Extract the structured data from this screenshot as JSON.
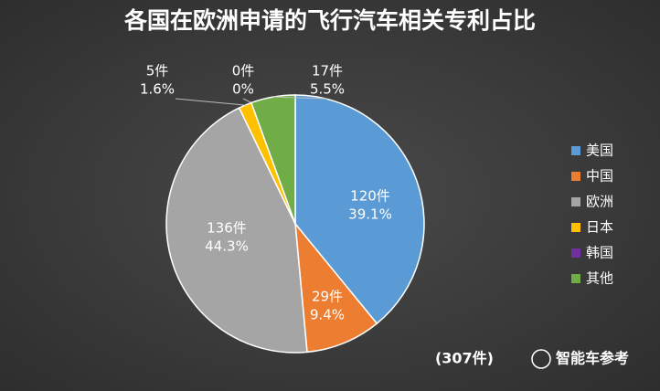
{
  "chart_data": {
    "type": "pie",
    "title": "各国在欧洲申请的飞行汽车相关专利占比",
    "categories": [
      "美国",
      "中国",
      "欧洲",
      "日本",
      "韩国",
      "其他"
    ],
    "values": [
      120,
      29,
      136,
      5,
      0,
      17
    ],
    "value_labels": [
      "120件",
      "29件",
      "136件",
      "5件",
      "0件",
      "17件"
    ],
    "percentages": [
      39.1,
      9.4,
      44.3,
      1.6,
      0,
      5.5
    ],
    "percentage_labels": [
      "39.1%",
      "9.4%",
      "44.3%",
      "1.6%",
      "0%",
      "5.5%"
    ],
    "colors": [
      "#5b9bd5",
      "#ed7d31",
      "#a5a5a5",
      "#ffc000",
      "#7030a0",
      "#70ad47"
    ],
    "legend": "right"
  },
  "footer": {
    "total": "(307件)",
    "watermark": "智能车参考"
  }
}
